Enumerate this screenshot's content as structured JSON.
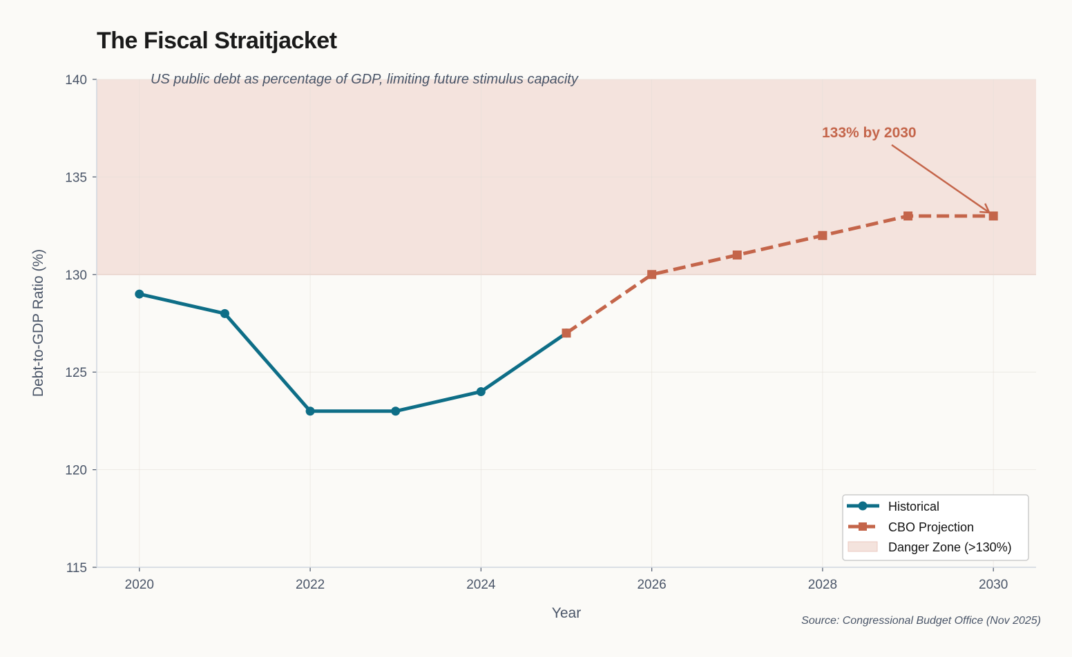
{
  "chart_data": {
    "type": "line",
    "title": "The Fiscal Straitjacket",
    "subtitle": "US public debt as percentage of GDP, limiting future stimulus capacity",
    "xlabel": "Year",
    "ylabel": "Debt-to-GDP Ratio (%)",
    "xlim": [
      2019.5,
      2030.5
    ],
    "ylim": [
      115,
      140
    ],
    "xticks": [
      2020,
      2022,
      2024,
      2026,
      2028,
      2030
    ],
    "yticks": [
      115,
      120,
      125,
      130,
      135,
      140
    ],
    "grid": true,
    "legend_position": "bottom-right",
    "series": [
      {
        "name": "Historical",
        "color": "#0e6e87",
        "style": "solid",
        "marker": "circle",
        "x": [
          2020,
          2021,
          2022,
          2023,
          2024,
          2025
        ],
        "y": [
          129,
          128,
          123,
          123,
          124,
          127
        ]
      },
      {
        "name": "CBO Projection",
        "color": "#c4654a",
        "style": "dashed",
        "marker": "square",
        "x": [
          2025,
          2026,
          2027,
          2028,
          2029,
          2030
        ],
        "y": [
          127,
          130,
          131,
          132,
          133,
          133
        ]
      }
    ],
    "shaded_region": {
      "name": "Danger Zone (>130%)",
      "y_from": 130,
      "y_to": 140,
      "color": "#f4e3dd"
    },
    "annotation": {
      "text": "133% by 2030",
      "x": 2030,
      "y": 133,
      "color": "#c4654a"
    },
    "source": "Source: Congressional Budget Office (Nov 2025)"
  }
}
